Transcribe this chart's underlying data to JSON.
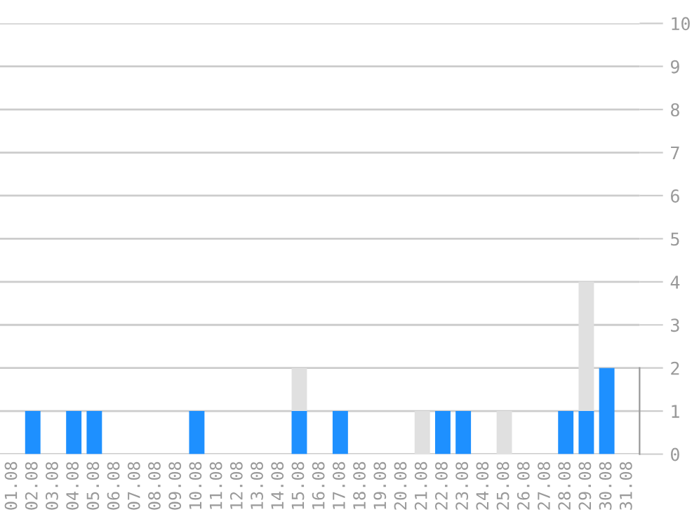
{
  "chart_data": {
    "type": "bar",
    "stacked": true,
    "categories": [
      "01.08",
      "02.08",
      "03.08",
      "04.08",
      "05.08",
      "06.08",
      "07.08",
      "08.08",
      "09.08",
      "10.08",
      "11.08",
      "12.08",
      "13.08",
      "14.08",
      "15.08",
      "16.08",
      "17.08",
      "18.08",
      "19.08",
      "20.08",
      "21.08",
      "22.08",
      "23.08",
      "24.08",
      "25.08",
      "26.08",
      "27.08",
      "28.08",
      "29.08",
      "30.08",
      "31.08"
    ],
    "series": [
      {
        "color": "#1e90ff",
        "values": [
          0,
          1,
          0,
          1,
          1,
          0,
          0,
          0,
          0,
          1,
          0,
          0,
          0,
          0,
          1,
          0,
          1,
          0,
          0,
          0,
          0,
          1,
          1,
          0,
          0,
          0,
          0,
          1,
          1,
          2,
          0
        ]
      },
      {
        "color": "#e0e0e0",
        "values": [
          0,
          0,
          0,
          0,
          0,
          0,
          0,
          0,
          0,
          0,
          0,
          0,
          0,
          0,
          1,
          0,
          0,
          0,
          0,
          0,
          1,
          0,
          0,
          0,
          1,
          0,
          0,
          0,
          3,
          0,
          0
        ]
      }
    ],
    "ylim": [
      0,
      10
    ],
    "yticks": [
      0,
      1,
      2,
      3,
      4,
      5,
      6,
      7,
      8,
      9,
      10
    ],
    "grid": "y",
    "legend": false
  }
}
